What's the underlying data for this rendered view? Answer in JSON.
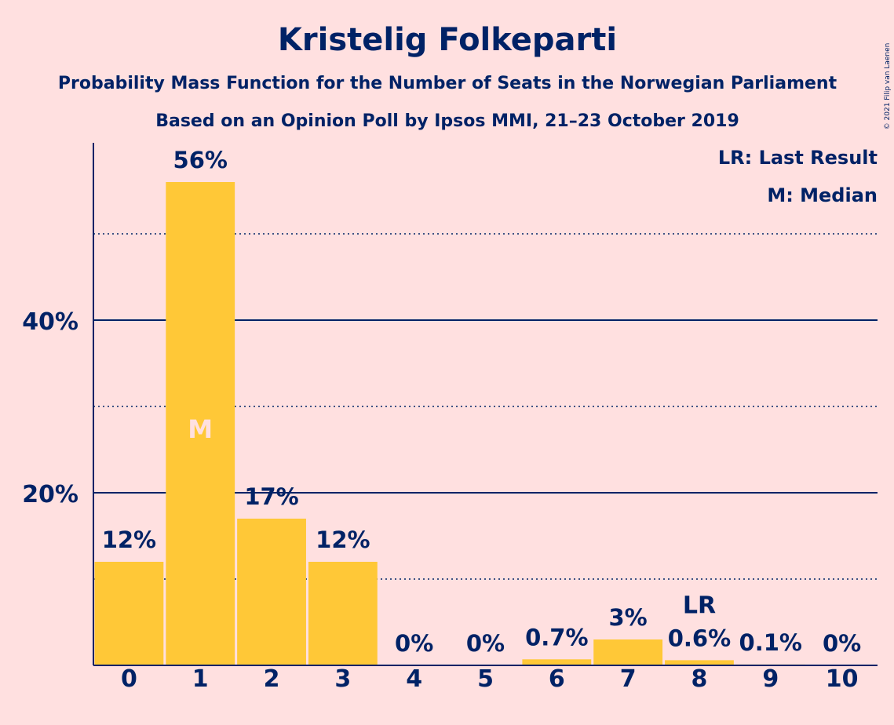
{
  "chart_data": {
    "type": "bar",
    "title": "Kristelig Folkeparti",
    "subtitle_1": "Probability Mass Function for the Number of Seats in the Norwegian Parliament",
    "subtitle_2": "Based on an Opinion Poll by Ipsos MMI, 21–23 October 2019",
    "categories": [
      "0",
      "1",
      "2",
      "3",
      "4",
      "5",
      "6",
      "7",
      "8",
      "9",
      "10"
    ],
    "values": [
      12,
      56,
      17,
      12,
      0,
      0,
      0.7,
      3,
      0.6,
      0.1,
      0
    ],
    "data_labels": [
      "12%",
      "56%",
      "17%",
      "12%",
      "0%",
      "0%",
      "0.7%",
      "3%",
      "0.6%",
      "0.1%",
      "0%"
    ],
    "y_ticks": [
      {
        "value": 20,
        "label": "20%"
      },
      {
        "value": 40,
        "label": "40%"
      }
    ],
    "y_minor_gridlines": [
      10,
      30,
      50
    ],
    "ylim": [
      0,
      60.5
    ],
    "median_index": 1,
    "median_mark": "M",
    "last_result_index": 8,
    "last_result_mark": "LR",
    "legend": [
      "LR: Last Result",
      "M: Median"
    ],
    "legend_position": "top-right",
    "credit": "© 2021 Filip van Laenen",
    "colors": {
      "background": "#FFE0E0",
      "bar": "#FFC837",
      "text": "#002266",
      "median_text": "#FFE0E0"
    }
  }
}
